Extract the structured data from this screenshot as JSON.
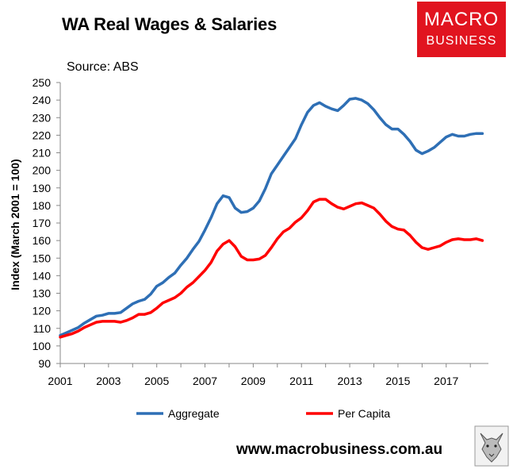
{
  "title": "WA Real Wages & Salaries",
  "source": "Source: ABS",
  "logo": {
    "line1": "MACRO",
    "line2": "BUSINESS"
  },
  "footer": "www.macrobusiness.com.au",
  "colors": {
    "aggregate": "#2e6fb5",
    "per_capita": "#ff0000",
    "logo_bg": "#e1141f"
  },
  "chart_data": {
    "type": "line",
    "title": "WA Real Wages & Salaries",
    "xlabel": "",
    "ylabel": "Index (March 2001 = 100)",
    "xlim": [
      2001,
      2018.75
    ],
    "ylim": [
      90,
      250
    ],
    "yticks": [
      90,
      100,
      110,
      120,
      130,
      140,
      150,
      160,
      170,
      180,
      190,
      200,
      210,
      220,
      230,
      240,
      250
    ],
    "xticks": [
      2001,
      2003,
      2005,
      2007,
      2009,
      2011,
      2013,
      2015,
      2017
    ],
    "grid": false,
    "legend": "bottom",
    "x": [
      2001.0,
      2001.25,
      2001.5,
      2001.75,
      2002.0,
      2002.25,
      2002.5,
      2002.75,
      2003.0,
      2003.25,
      2003.5,
      2003.75,
      2004.0,
      2004.25,
      2004.5,
      2004.75,
      2005.0,
      2005.25,
      2005.5,
      2005.75,
      2006.0,
      2006.25,
      2006.5,
      2006.75,
      2007.0,
      2007.25,
      2007.5,
      2007.75,
      2008.0,
      2008.25,
      2008.5,
      2008.75,
      2009.0,
      2009.25,
      2009.5,
      2009.75,
      2010.0,
      2010.25,
      2010.5,
      2010.75,
      2011.0,
      2011.25,
      2011.5,
      2011.75,
      2012.0,
      2012.25,
      2012.5,
      2012.75,
      2013.0,
      2013.25,
      2013.5,
      2013.75,
      2014.0,
      2014.25,
      2014.5,
      2014.75,
      2015.0,
      2015.25,
      2015.5,
      2015.75,
      2016.0,
      2016.25,
      2016.5,
      2016.75,
      2017.0,
      2017.25,
      2017.5,
      2017.75,
      2018.0,
      2018.25,
      2018.5
    ],
    "series": [
      {
        "name": "Aggregate",
        "values": [
          106,
          107.5,
          109,
          110.5,
          113,
          115,
          117,
          117.5,
          118.5,
          118.5,
          119,
          121.5,
          124,
          125.5,
          126.5,
          129.5,
          134,
          136,
          139,
          141.5,
          146,
          150,
          155,
          159.5,
          166,
          173,
          181,
          185.5,
          184.5,
          178.5,
          176,
          176.5,
          178.5,
          182.5,
          189.5,
          198,
          203,
          208,
          213,
          218,
          226,
          233,
          237,
          238.5,
          236.5,
          235,
          234,
          237,
          240.5,
          241,
          240,
          238,
          234.5,
          230,
          226,
          223.5,
          223.5,
          220.5,
          216.5,
          211.5,
          209.5,
          211,
          213,
          216,
          219,
          220.5,
          219.5,
          219.5,
          220.5,
          221,
          221
        ]
      },
      {
        "name": "Per Capita",
        "values": [
          105,
          106,
          107,
          108.5,
          110.5,
          112,
          113.5,
          114,
          114,
          114,
          113.5,
          114.5,
          116,
          118,
          118,
          119,
          121.5,
          124.5,
          126,
          127.5,
          130,
          133.5,
          136,
          139.5,
          143,
          147.5,
          154,
          158,
          160,
          156.5,
          151,
          149,
          149,
          149.5,
          151.5,
          156,
          161,
          165,
          167,
          170.5,
          173,
          177,
          182,
          183.5,
          183.5,
          181,
          179,
          178,
          179.5,
          181,
          181.5,
          180,
          178.5,
          175,
          171,
          168,
          166.5,
          166,
          163,
          159,
          156,
          155,
          156,
          157,
          159,
          160.5,
          161,
          160.5,
          160.5,
          161,
          160
        ]
      }
    ]
  }
}
